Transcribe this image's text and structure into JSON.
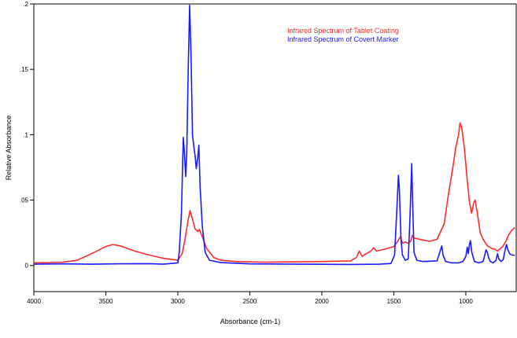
{
  "chart_data": {
    "type": "line",
    "title": "",
    "xlabel": "Absorbance (cm-1)",
    "ylabel": "Relative Absorbance",
    "xlim": [
      4000,
      650
    ],
    "ylim": [
      -0.02,
      0.2
    ],
    "x_ticks": [
      4000,
      3500,
      3000,
      2500,
      2000,
      1500,
      1000
    ],
    "x_tick_labels": [
      "4000",
      "3500",
      "3000",
      "2500",
      "2000",
      "1500",
      "1000"
    ],
    "y_ticks": [
      0,
      0.05,
      0.1,
      0.15,
      0.2
    ],
    "y_tick_labels": [
      "0",
      ".05",
      ".1",
      ".15",
      ".2"
    ],
    "grid": false,
    "legend_position": "top-right",
    "series": [
      {
        "name": "Infrared Spectrum of Tablet Coating",
        "color": "#ff2a2a",
        "points": [
          [
            4000,
            0.002
          ],
          [
            3800,
            0.0025
          ],
          [
            3700,
            0.004
          ],
          [
            3600,
            0.009
          ],
          [
            3500,
            0.0145
          ],
          [
            3450,
            0.016
          ],
          [
            3400,
            0.015
          ],
          [
            3300,
            0.011
          ],
          [
            3200,
            0.008
          ],
          [
            3100,
            0.0055
          ],
          [
            3000,
            0.004
          ],
          [
            2970,
            0.009
          ],
          [
            2950,
            0.02
          ],
          [
            2930,
            0.034
          ],
          [
            2915,
            0.042
          ],
          [
            2900,
            0.036
          ],
          [
            2880,
            0.028
          ],
          [
            2860,
            0.026
          ],
          [
            2850,
            0.0275
          ],
          [
            2830,
            0.022
          ],
          [
            2800,
            0.013
          ],
          [
            2750,
            0.006
          ],
          [
            2700,
            0.004
          ],
          [
            2600,
            0.003
          ],
          [
            2400,
            0.0025
          ],
          [
            2000,
            0.003
          ],
          [
            1800,
            0.0035
          ],
          [
            1760,
            0.006
          ],
          [
            1740,
            0.011
          ],
          [
            1720,
            0.007
          ],
          [
            1700,
            0.0085
          ],
          [
            1660,
            0.011
          ],
          [
            1640,
            0.0135
          ],
          [
            1620,
            0.011
          ],
          [
            1560,
            0.0125
          ],
          [
            1500,
            0.0145
          ],
          [
            1470,
            0.019
          ],
          [
            1455,
            0.022
          ],
          [
            1440,
            0.017
          ],
          [
            1420,
            0.018
          ],
          [
            1400,
            0.017
          ],
          [
            1380,
            0.019
          ],
          [
            1372,
            0.023
          ],
          [
            1360,
            0.021
          ],
          [
            1300,
            0.0195
          ],
          [
            1250,
            0.0185
          ],
          [
            1200,
            0.02
          ],
          [
            1150,
            0.032
          ],
          [
            1120,
            0.055
          ],
          [
            1090,
            0.075
          ],
          [
            1070,
            0.09
          ],
          [
            1050,
            0.1
          ],
          [
            1040,
            0.109
          ],
          [
            1030,
            0.106
          ],
          [
            1010,
            0.09
          ],
          [
            990,
            0.065
          ],
          [
            975,
            0.049
          ],
          [
            960,
            0.04
          ],
          [
            945,
            0.048
          ],
          [
            935,
            0.05
          ],
          [
            920,
            0.04
          ],
          [
            900,
            0.025
          ],
          [
            880,
            0.02
          ],
          [
            850,
            0.015
          ],
          [
            820,
            0.013
          ],
          [
            800,
            0.0125
          ],
          [
            780,
            0.011
          ],
          [
            760,
            0.013
          ],
          [
            740,
            0.015
          ],
          [
            720,
            0.019
          ],
          [
            700,
            0.024
          ],
          [
            680,
            0.027
          ],
          [
            660,
            0.029
          ]
        ]
      },
      {
        "name": "Infrared Spectrum of Covert Marker",
        "color": "#1a1aff",
        "points": [
          [
            4000,
            0.001
          ],
          [
            3800,
            0.0012
          ],
          [
            3600,
            0.001
          ],
          [
            3400,
            0.0013
          ],
          [
            3200,
            0.0014
          ],
          [
            3100,
            0.001
          ],
          [
            3000,
            0.002
          ],
          [
            2990,
            0.01
          ],
          [
            2975,
            0.04
          ],
          [
            2962,
            0.098
          ],
          [
            2955,
            0.088
          ],
          [
            2945,
            0.068
          ],
          [
            2938,
            0.085
          ],
          [
            2928,
            0.15
          ],
          [
            2918,
            0.199
          ],
          [
            2908,
            0.16
          ],
          [
            2898,
            0.1
          ],
          [
            2888,
            0.09
          ],
          [
            2880,
            0.084
          ],
          [
            2872,
            0.074
          ],
          [
            2862,
            0.082
          ],
          [
            2854,
            0.092
          ],
          [
            2845,
            0.06
          ],
          [
            2830,
            0.03
          ],
          [
            2810,
            0.01
          ],
          [
            2780,
            0.004
          ],
          [
            2700,
            0.0022
          ],
          [
            2500,
            0.0012
          ],
          [
            2100,
            0.001
          ],
          [
            1800,
            0.0008
          ],
          [
            1600,
            0.001
          ],
          [
            1520,
            0.0015
          ],
          [
            1495,
            0.008
          ],
          [
            1480,
            0.04
          ],
          [
            1468,
            0.069
          ],
          [
            1462,
            0.06
          ],
          [
            1450,
            0.02
          ],
          [
            1440,
            0.008
          ],
          [
            1420,
            0.004
          ],
          [
            1400,
            0.005
          ],
          [
            1390,
            0.03
          ],
          [
            1380,
            0.062
          ],
          [
            1376,
            0.078
          ],
          [
            1370,
            0.05
          ],
          [
            1360,
            0.01
          ],
          [
            1340,
            0.004
          ],
          [
            1300,
            0.003
          ],
          [
            1200,
            0.0035
          ],
          [
            1175,
            0.012
          ],
          [
            1167,
            0.015
          ],
          [
            1158,
            0.008
          ],
          [
            1140,
            0.003
          ],
          [
            1100,
            0.002
          ],
          [
            1050,
            0.002
          ],
          [
            1020,
            0.003
          ],
          [
            1000,
            0.007
          ],
          [
            990,
            0.014
          ],
          [
            982,
            0.009
          ],
          [
            975,
            0.016
          ],
          [
            968,
            0.019
          ],
          [
            958,
            0.01
          ],
          [
            940,
            0.003
          ],
          [
            910,
            0.002
          ],
          [
            880,
            0.003
          ],
          [
            870,
            0.007
          ],
          [
            860,
            0.012
          ],
          [
            850,
            0.01
          ],
          [
            842,
            0.006
          ],
          [
            830,
            0.003
          ],
          [
            810,
            0.002
          ],
          [
            790,
            0.004
          ],
          [
            780,
            0.009
          ],
          [
            770,
            0.005
          ],
          [
            755,
            0.003
          ],
          [
            740,
            0.0045
          ],
          [
            725,
            0.013
          ],
          [
            718,
            0.016
          ],
          [
            708,
            0.012
          ],
          [
            695,
            0.009
          ],
          [
            680,
            0.008
          ],
          [
            660,
            0.0078
          ]
        ]
      }
    ]
  }
}
